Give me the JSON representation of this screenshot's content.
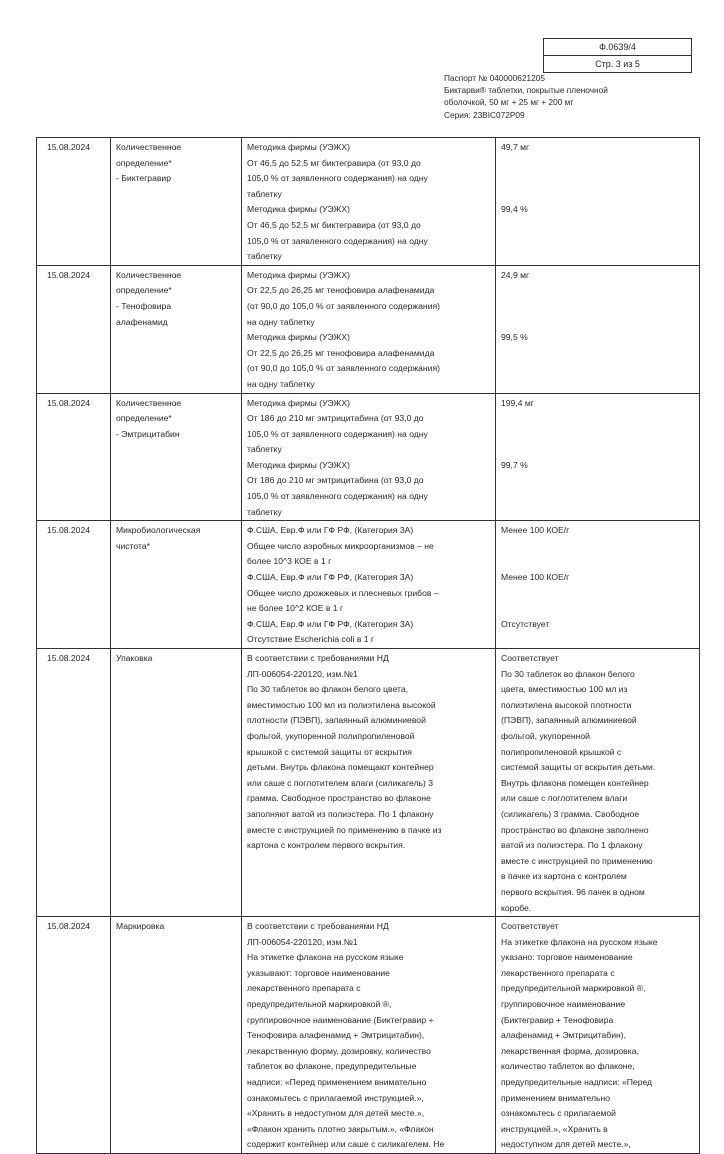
{
  "header": {
    "form_code": "Ф.0639/4",
    "page": "Стр. 3 из 5",
    "passport_lines": [
      "Паспорт № 040000621205",
      "Биктарви® таблетки, покрытые пленочной",
      "оболочкой, 50 мг + 25 мг + 200 мг",
      "Серия: 23BIC072P09"
    ]
  },
  "table": {
    "rows": [
      {
        "date": "15.08.2024",
        "test": [
          "Количественное",
          "определение*",
          "- Биктегравир"
        ],
        "requirement": [
          "Методика фирмы (УЭЖХ)",
          "От 46,5 до 52,5 мг биктегравира (от 93,0 до",
          "105,0 % от заявленного содержания) на одну",
          "таблетку",
          "Методика фирмы (УЭЖХ)",
          "От 46,5 до 52,5 мг биктегравира (от 93,0 до",
          "105,0 % от заявленного содержания) на одну",
          "таблетку"
        ],
        "result": [
          "49,7 мг",
          "",
          "",
          "",
          "99,4 %"
        ]
      },
      {
        "date": "15.08.2024",
        "test": [
          "Количественное",
          "определение*",
          "- Тенофовира",
          "алафенамид"
        ],
        "requirement": [
          "Методика фирмы (УЭЖХ)",
          "От 22,5 до 26,25 мг тенофовира алафенамида",
          "(от 90,0 до 105,0 % от заявленного содержания)",
          "на одну таблетку",
          "Методика фирмы (УЭЖХ)",
          "От 22,5 до 26,25 мг тенофовира алафенамида",
          "(от 90,0 до 105,0 % от заявленного содержания)",
          "на одну таблетку"
        ],
        "result": [
          "24,9 мг",
          "",
          "",
          "",
          "99,5 %"
        ]
      },
      {
        "date": "15.08.2024",
        "test": [
          "Количественное",
          "определение*",
          "- Эмтрицитабин"
        ],
        "requirement": [
          "Методика фирмы (УЭЖХ)",
          "От 186 до 210 мг эмтрицитабина (от 93,0 до",
          "105,0 % от заявленного содержания) на одну",
          "таблетку",
          "Методика фирмы (УЭЖХ)",
          "От 186 до 210 мг эмтрицитабина (от 93,0 до",
          "105,0 % от заявленного содержания) на одну",
          "таблетку"
        ],
        "result": [
          "199,4 мг",
          "",
          "",
          "",
          "99,7 %"
        ]
      },
      {
        "date": "15.08.2024",
        "test": [
          "Микробиологическая",
          "чистота*"
        ],
        "requirement": [
          "Ф.США, Евр.Ф или ГФ РФ, (Категория 3А)",
          "Общее число аэробных микроорганизмов – не",
          "более 10^3 КОЕ в 1 г",
          "Ф.США, Евр.Ф или ГФ РФ, (Категория 3А)",
          "Общее число дрожжевых и плесневых грибов –",
          "не более 10^2 КОЕ в 1 г",
          "Ф.США, Евр.Ф или ГФ РФ, (Категория 3А)",
          "Отсутствие Escherichia coli в 1 г"
        ],
        "result": [
          "Менее 100 КОЕ/г",
          "",
          "",
          "Менее 100 КОЕ/г",
          "",
          "",
          "Отсутствует"
        ]
      },
      {
        "date": "15.08.2024",
        "test": [
          "Упаковка"
        ],
        "requirement": [
          "В соответствии с требованиями НД",
          "ЛП-006054-220120, изм.№1",
          "По 30 таблеток во флакон белого цвета,",
          "вместимостью 100 мл из полиэтилена высокой",
          "плотности (ПЭВП), запаянный алюминиевой",
          "фольгой, укупоренной полипропиленовой",
          "крышкой с системой защиты от вскрытия",
          "детьми. Внутрь флакона помещают контейнер",
          "или саше с поглотителем влаги (силикагель) 3",
          "грамма. Свободное пространство во флаконе",
          "заполняют ватой из полиэстера. По 1 флакону",
          "вместе с инструкцией по применению в пачке из",
          "картона с контролем первого вскрытия."
        ],
        "result": [
          "Соответствует",
          "По 30 таблеток во флакон белого",
          "цвета, вместимостью 100 мл из",
          "полиэтилена высокой плотности",
          "(ПЭВП), запаянный алюминиевой",
          "фольгой, укупоренной",
          "полипропиленовой крышкой с",
          "системой защиты от вскрытия детьми.",
          "Внутрь флакона помещен контейнер",
          "или саше с поглотителем влаги",
          "(силикагель) 3 грамма. Свободное",
          "пространство во флаконе заполнено",
          "ватой из полиэстера. По 1 флакону",
          "вместе с инструкцией по применению",
          "в пачке из картона с контролем",
          "первого вскрытия. 96 пачек в одном",
          "коробе."
        ]
      },
      {
        "date": "15.08.2024",
        "test": [
          "Маркировка"
        ],
        "requirement": [
          "В соответствии с требованиями НД",
          "ЛП-006054-220120, изм.№1",
          "На этикетке флакона на русском языке",
          "указывают: торговое наименование",
          "лекарственного препарата с",
          "предупредительной маркировкой ®,",
          "группировочное наименование (Биктегравир +",
          "Тенофовира алафенамид + Эмтрицитабин),",
          "лекарственную форму, дозировку, количество",
          "таблеток во флаконе, предупредительные",
          "надписи: «Перед применением внимательно",
          "ознакомьтесь с прилагаемой инструкцией.»,",
          "«Хранить в недоступном для детей месте.»,",
          "«Флакон хранить плотно закрытым.», «Флакон",
          "содержит контейнер или саше с силикагелем. Не"
        ],
        "result": [
          "Соответствует",
          "На этикетке флакона на русском языке",
          "указано: торговое наименование",
          "лекарственного препарата с",
          "предупредительной маркировкой ®,",
          "группировочное наименование",
          "(Биктегравир + Тенофовира",
          "алафенамид + Эмтрицитабин),",
          "лекарственная форма, дозировка,",
          "количество таблеток во флаконе,",
          "предупредительные надписи: «Перед",
          "применением внимательно",
          "ознакомьтесь с прилагаемой",
          "инструкцией.», «Хранить в",
          "недоступном для детей месте.»,"
        ]
      }
    ]
  }
}
